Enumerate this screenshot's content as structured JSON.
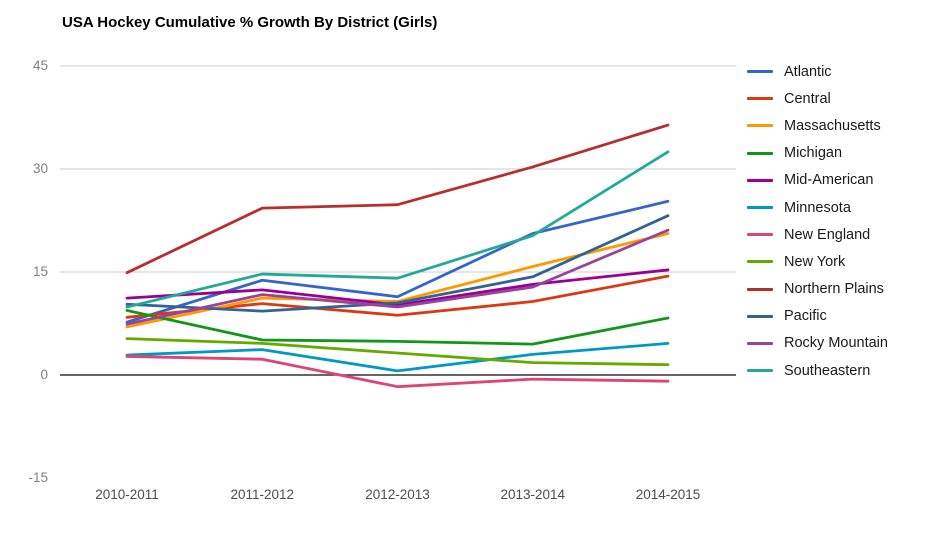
{
  "chart_data": {
    "type": "line",
    "title": "USA Hockey Cumulative % Growth By District (Girls)",
    "xlabel": "",
    "ylabel": "",
    "categories": [
      "2010-2011",
      "2011-2012",
      "2012-2013",
      "2013-2014",
      "2014-2015"
    ],
    "yticks": [
      45,
      30,
      15,
      0,
      -15
    ],
    "gridlines": [
      45,
      30,
      15,
      0
    ],
    "ylim": [
      -15,
      45
    ],
    "grid": true,
    "legend_position": "right",
    "axis_colors": {
      "gridline": "#cccccc",
      "zero_line": "#333333",
      "y_tick_text": "#808080",
      "x_tick_text": "#4d4d4d"
    },
    "series": [
      {
        "name": "Atlantic",
        "color": "#3366cc",
        "values": [
          7.7,
          13.8,
          11.4,
          20.6,
          25.3
        ]
      },
      {
        "name": "Central",
        "color": "#dc3912",
        "values": [
          8.4,
          10.4,
          8.7,
          10.7,
          14.4
        ]
      },
      {
        "name": "Massachusetts",
        "color": "#ff9900",
        "values": [
          7.0,
          11.2,
          10.7,
          15.8,
          20.6
        ]
      },
      {
        "name": "Michigan",
        "color": "#109618",
        "values": [
          9.4,
          5.1,
          4.9,
          4.5,
          8.3
        ]
      },
      {
        "name": "Mid-American",
        "color": "#990099",
        "values": [
          11.2,
          12.4,
          10.2,
          13.2,
          15.3
        ]
      },
      {
        "name": "Minnesota",
        "color": "#0099c6",
        "values": [
          2.9,
          3.7,
          0.6,
          3.0,
          4.6
        ]
      },
      {
        "name": "New England",
        "color": "#dd4477",
        "values": [
          2.7,
          2.3,
          -1.7,
          -0.6,
          -0.9
        ]
      },
      {
        "name": "New York",
        "color": "#66aa00",
        "values": [
          5.3,
          4.6,
          3.2,
          1.8,
          1.5
        ]
      },
      {
        "name": "Northern Plains",
        "color": "#b82e2e",
        "values": [
          14.9,
          24.3,
          24.8,
          30.3,
          36.4
        ]
      },
      {
        "name": "Pacific",
        "color": "#316395",
        "values": [
          10.3,
          9.3,
          10.5,
          14.3,
          23.2
        ]
      },
      {
        "name": "Rocky Mountain",
        "color": "#994499",
        "values": [
          7.4,
          11.7,
          9.9,
          12.8,
          21.1
        ]
      },
      {
        "name": "Southeastern",
        "color": "#22aa99",
        "values": [
          9.9,
          14.7,
          14.1,
          20.3,
          32.5
        ]
      }
    ]
  }
}
